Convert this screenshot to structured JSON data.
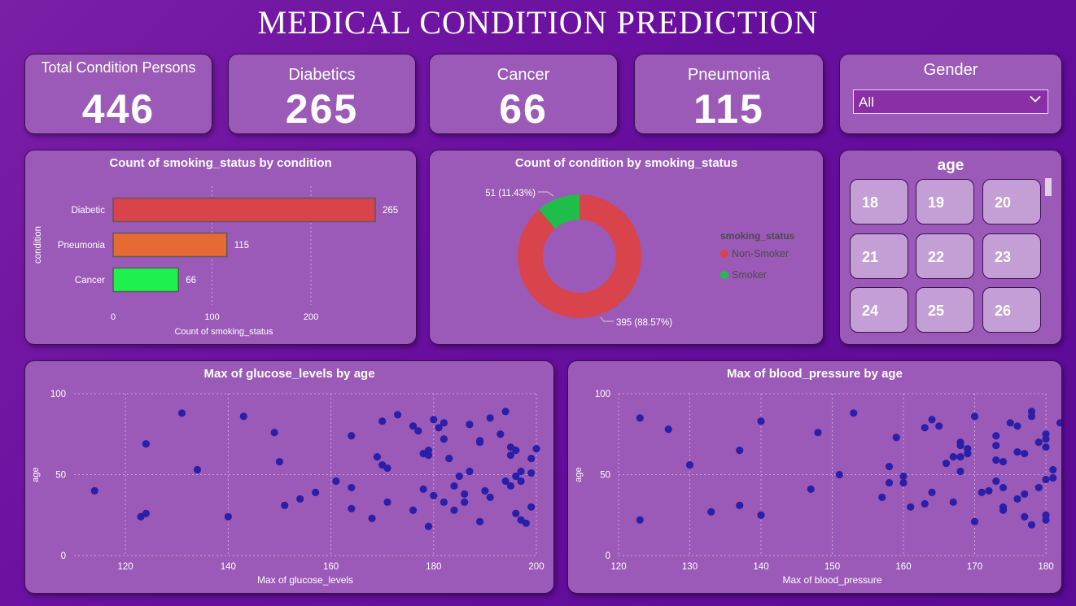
{
  "title": "MEDICAL CONDITION PREDICTION",
  "kpis": [
    {
      "label": "Total Condition Persons",
      "value": "446"
    },
    {
      "label": "Diabetics",
      "value": "265"
    },
    {
      "label": "Cancer",
      "value": "66"
    },
    {
      "label": "Pneumonia",
      "value": "115"
    }
  ],
  "gender_slicer": {
    "label": "Gender",
    "selected": "All"
  },
  "age_slicer": {
    "label": "age",
    "tiles": [
      "18",
      "19",
      "20",
      "21",
      "22",
      "23",
      "24",
      "25",
      "26"
    ]
  },
  "chart_data": [
    {
      "type": "bar",
      "orientation": "horizontal",
      "title": "Count of smoking_status by condition",
      "xlabel": "Count of smoking_status",
      "ylabel": "condition",
      "categories": [
        "Diabetic",
        "Pneumonia",
        "Cancer"
      ],
      "values": [
        265,
        115,
        66
      ],
      "colors": [
        "#d9434b",
        "#e56a34",
        "#1ef14e"
      ],
      "xticks": [
        0,
        100,
        200
      ],
      "xlim": [
        0,
        265
      ]
    },
    {
      "type": "pie",
      "variant": "donut",
      "title": "Count of condition by smoking_status",
      "legend_title": "smoking_status",
      "legend_position": "right",
      "slices": [
        {
          "name": "Non-Smoker",
          "value": 395,
          "label": "395 (88.57%)",
          "color": "#d9434b"
        },
        {
          "name": "Smoker",
          "value": 51,
          "label": "51 (11.43%)",
          "color": "#1fbd4a"
        }
      ]
    },
    {
      "type": "scatter",
      "title": "Max of glucose_levels by age",
      "xlabel": "Max of glucose_levels",
      "ylabel": "age",
      "xlim": [
        110,
        200
      ],
      "ylim": [
        0,
        100
      ],
      "xticks": [
        120,
        140,
        160,
        180,
        200
      ],
      "yticks": [
        0,
        50,
        100
      ],
      "point_color": "#2a1fa8",
      "points": [
        [
          114,
          40
        ],
        [
          123,
          24
        ],
        [
          124,
          26
        ],
        [
          124,
          69
        ],
        [
          131,
          88
        ],
        [
          134,
          53
        ],
        [
          140,
          24
        ],
        [
          143,
          86
        ],
        [
          149,
          76
        ],
        [
          150,
          58
        ],
        [
          151,
          31
        ],
        [
          154,
          35
        ],
        [
          157,
          39
        ],
        [
          161,
          46
        ],
        [
          164,
          29
        ],
        [
          164,
          42
        ],
        [
          164,
          74
        ],
        [
          168,
          23
        ],
        [
          169,
          61
        ],
        [
          170,
          56
        ],
        [
          170,
          83
        ],
        [
          171,
          54
        ],
        [
          171,
          33
        ],
        [
          173,
          87
        ],
        [
          176,
          28
        ],
        [
          176,
          80
        ],
        [
          177,
          77
        ],
        [
          178,
          41
        ],
        [
          178,
          63
        ],
        [
          179,
          18
        ],
        [
          179,
          65
        ],
        [
          179,
          62
        ],
        [
          180,
          37
        ],
        [
          180,
          84
        ],
        [
          181,
          79
        ],
        [
          182,
          82
        ],
        [
          182,
          33
        ],
        [
          182,
          72
        ],
        [
          183,
          60
        ],
        [
          184,
          43
        ],
        [
          184,
          28
        ],
        [
          185,
          49
        ],
        [
          186,
          38
        ],
        [
          186,
          33
        ],
        [
          187,
          52
        ],
        [
          187,
          81
        ],
        [
          189,
          21
        ],
        [
          189,
          70
        ],
        [
          189,
          71
        ],
        [
          190,
          40
        ],
        [
          191,
          36
        ],
        [
          191,
          85
        ],
        [
          193,
          75
        ],
        [
          194,
          46
        ],
        [
          194,
          89
        ],
        [
          195,
          43
        ],
        [
          195,
          67
        ],
        [
          195,
          62
        ],
        [
          196,
          26
        ],
        [
          196,
          65
        ],
        [
          196,
          49
        ],
        [
          197,
          52
        ],
        [
          197,
          22
        ],
        [
          197,
          46
        ],
        [
          198,
          20
        ],
        [
          199,
          60
        ],
        [
          199,
          51
        ],
        [
          199,
          30
        ],
        [
          200,
          66
        ]
      ]
    },
    {
      "type": "scatter",
      "title": "Max of blood_pressure by age",
      "xlabel": "Max of blood_pressure",
      "ylabel": "age",
      "xlim": [
        120,
        180
      ],
      "ylim": [
        0,
        100
      ],
      "xticks": [
        120,
        130,
        140,
        150,
        160,
        170,
        180
      ],
      "yticks": [
        0,
        50,
        100
      ],
      "point_color": "#2a1fa8",
      "points": [
        [
          123,
          22
        ],
        [
          123,
          85
        ],
        [
          127,
          78
        ],
        [
          130,
          56
        ],
        [
          133,
          27
        ],
        [
          137,
          31
        ],
        [
          137,
          65
        ],
        [
          140,
          83
        ],
        [
          140,
          25
        ],
        [
          147,
          41
        ],
        [
          148,
          76
        ],
        [
          151,
          50
        ],
        [
          153,
          88
        ],
        [
          157,
          36
        ],
        [
          158,
          45
        ],
        [
          158,
          55
        ],
        [
          159,
          73
        ],
        [
          160,
          49
        ],
        [
          160,
          45
        ],
        [
          161,
          30
        ],
        [
          163,
          79
        ],
        [
          163,
          32
        ],
        [
          164,
          39
        ],
        [
          164,
          84
        ],
        [
          165,
          80
        ],
        [
          166,
          57
        ],
        [
          167,
          33
        ],
        [
          167,
          61
        ],
        [
          168,
          52
        ],
        [
          168,
          70
        ],
        [
          168,
          61
        ],
        [
          168,
          68
        ],
        [
          169,
          63
        ],
        [
          169,
          66
        ],
        [
          170,
          86
        ],
        [
          170,
          21
        ],
        [
          171,
          39
        ],
        [
          172,
          40
        ],
        [
          173,
          74
        ],
        [
          173,
          68
        ],
        [
          173,
          59
        ],
        [
          173,
          46
        ],
        [
          174,
          30
        ],
        [
          174,
          42
        ],
        [
          174,
          58
        ],
        [
          174,
          28
        ],
        [
          175,
          82
        ],
        [
          176,
          80
        ],
        [
          176,
          35
        ],
        [
          176,
          64
        ],
        [
          177,
          38
        ],
        [
          177,
          24
        ],
        [
          177,
          63
        ],
        [
          178,
          89
        ],
        [
          178,
          86
        ],
        [
          178,
          19
        ],
        [
          179,
          70
        ],
        [
          179,
          42
        ],
        [
          180,
          72
        ],
        [
          180,
          75
        ],
        [
          180,
          67
        ],
        [
          180,
          47
        ],
        [
          180,
          22
        ],
        [
          180,
          25
        ],
        [
          181,
          53
        ],
        [
          181,
          48
        ],
        [
          182,
          82
        ]
      ]
    }
  ]
}
